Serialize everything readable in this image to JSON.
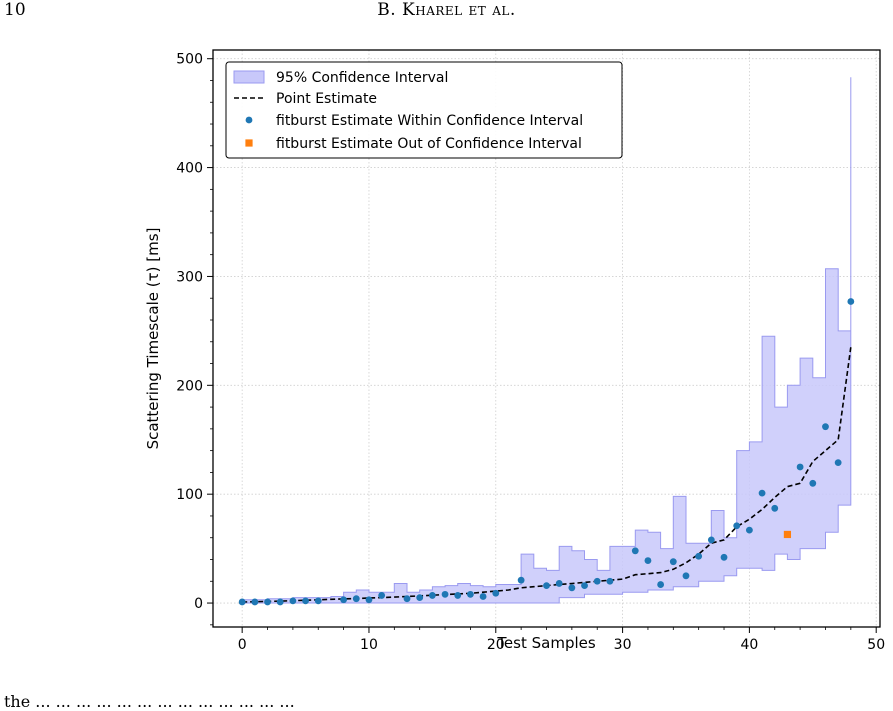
{
  "page": {
    "number": "10",
    "running_head": "B. Kharel et al.",
    "caption_fragment": "the ... ... ... ... ... ... ... ... ... ... ... ... ..."
  },
  "chart_data": {
    "type": "line",
    "xlabel": "Test Samples",
    "ylabel": "Scattering Timescale (τ) [ms]",
    "xlim": [
      -2.3,
      50.3
    ],
    "ylim": [
      -22,
      508
    ],
    "xticks": [
      0,
      10,
      20,
      30,
      40,
      50
    ],
    "yticks": [
      0,
      100,
      200,
      300,
      400,
      500
    ],
    "grid": true,
    "legend_position": "top-left",
    "legend": [
      {
        "label": "95% Confidence Interval",
        "kind": "band",
        "color": "#c8c8fa"
      },
      {
        "label": "Point Estimate",
        "kind": "dashed-line",
        "color": "#000000"
      },
      {
        "label": "fitburst Estimate Within Confidence Interval",
        "kind": "circle",
        "color": "#1f77b4"
      },
      {
        "label": "fitburst Estimate Out of Confidence Interval",
        "kind": "square",
        "color": "#ff7f0e"
      }
    ],
    "x": [
      0,
      1,
      2,
      3,
      4,
      5,
      6,
      7,
      8,
      9,
      10,
      11,
      12,
      13,
      14,
      15,
      16,
      17,
      18,
      19,
      20,
      21,
      22,
      23,
      24,
      25,
      26,
      27,
      28,
      29,
      30,
      31,
      32,
      33,
      34,
      35,
      36,
      37,
      38,
      39,
      40,
      41,
      42,
      43,
      44,
      45,
      46,
      47,
      48
    ],
    "ci_lower": [
      0,
      0,
      0,
      0,
      0,
      0,
      0,
      0,
      0,
      0,
      0,
      0,
      0,
      0,
      0,
      0,
      0,
      0,
      0,
      0,
      0,
      0,
      0,
      0,
      0,
      5,
      5,
      8,
      8,
      8,
      10,
      10,
      12,
      12,
      15,
      15,
      20,
      20,
      25,
      32,
      32,
      30,
      45,
      40,
      50,
      50,
      65,
      90,
      115
    ],
    "ci_upper": [
      3,
      3,
      4,
      4,
      5,
      5,
      5,
      6,
      10,
      12,
      10,
      10,
      18,
      10,
      12,
      15,
      16,
      18,
      16,
      15,
      17,
      17,
      45,
      32,
      30,
      52,
      48,
      40,
      30,
      52,
      52,
      67,
      65,
      50,
      98,
      55,
      55,
      85,
      60,
      140,
      148,
      245,
      180,
      200,
      225,
      207,
      307,
      250,
      483
    ],
    "point_estimate": [
      1,
      1.2,
      1.5,
      1.8,
      2.2,
      2.6,
      3.0,
      3.4,
      3.8,
      4.2,
      4.6,
      5.0,
      5.5,
      6.0,
      6.6,
      7.2,
      7.8,
      8.4,
      9.0,
      10,
      11,
      12,
      14,
      15,
      16,
      17,
      18,
      19,
      20,
      21,
      22,
      26,
      27,
      28,
      31,
      37,
      45,
      55,
      58,
      70,
      77,
      86,
      97,
      107,
      110,
      130,
      140,
      150,
      235
    ],
    "fitburst_within": {
      "x": [
        0,
        1,
        2,
        3,
        4,
        5,
        6,
        8,
        9,
        10,
        11,
        13,
        14,
        15,
        16,
        17,
        18,
        19,
        20,
        22,
        24,
        25,
        26,
        27,
        28,
        29,
        31,
        32,
        33,
        34,
        35,
        36,
        37,
        38,
        39,
        40,
        41,
        42,
        44,
        45,
        46,
        47,
        48
      ],
      "y": [
        1,
        1,
        1,
        1,
        2,
        2,
        2,
        3,
        4,
        3,
        7,
        4,
        5,
        7,
        8,
        7,
        8,
        6,
        9,
        21,
        16,
        18,
        14,
        16,
        20,
        20,
        48,
        39,
        17,
        38,
        25,
        43,
        58,
        42,
        71,
        67,
        101,
        87,
        125,
        110,
        162,
        129,
        277
      ]
    },
    "fitburst_outside": {
      "x": [
        43
      ],
      "y": [
        63
      ]
    }
  }
}
